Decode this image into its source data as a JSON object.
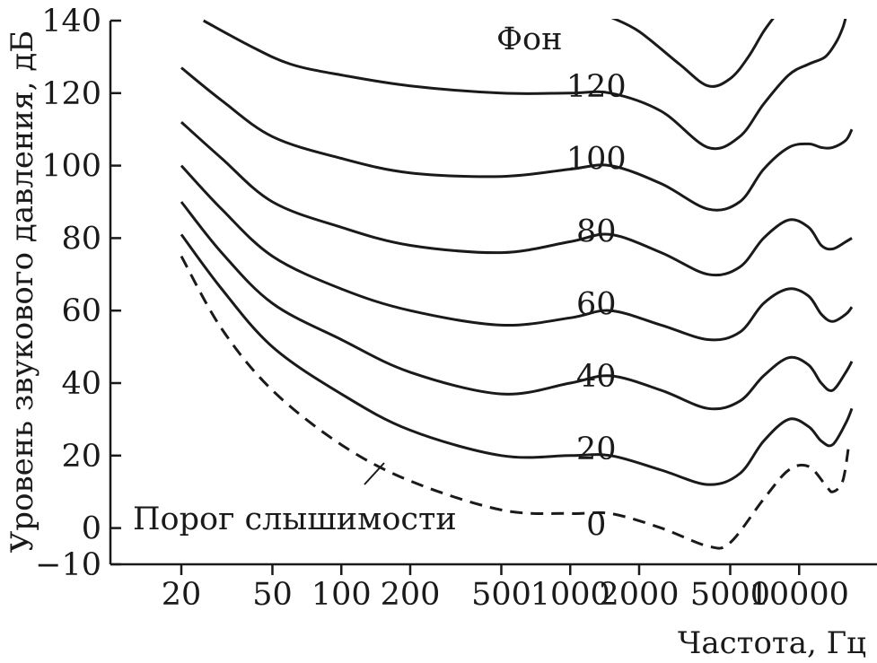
{
  "chart_data": {
    "type": "line",
    "title": "",
    "xlabel": "Частота, Гц",
    "ylabel": "Уровень звукового давления, дБ",
    "x_scale": "log",
    "xlim": [
      10,
      20000
    ],
    "ylim": [
      -10,
      140
    ],
    "x_ticks": [
      {
        "value": 20,
        "label": "20"
      },
      {
        "value": 50,
        "label": "50"
      },
      {
        "value": 100,
        "label": "100"
      },
      {
        "value": 200,
        "label": "200"
      },
      {
        "value": 500,
        "label": "500"
      },
      {
        "value": 1000,
        "label": "1000"
      },
      {
        "value": 2000,
        "label": "2000"
      },
      {
        "value": 5000,
        "label": "5000"
      },
      {
        "value": 10000,
        "label": "10000"
      }
    ],
    "y_ticks": [
      {
        "value": 140,
        "label": "140"
      },
      {
        "value": 120,
        "label": "120"
      },
      {
        "value": 100,
        "label": "100"
      },
      {
        "value": 80,
        "label": "80"
      },
      {
        "value": 60,
        "label": "60"
      },
      {
        "value": 40,
        "label": "40"
      },
      {
        "value": 20,
        "label": "20"
      },
      {
        "value": 0,
        "label": "0"
      },
      {
        "value": -10,
        "label": "−10"
      }
    ],
    "units_label": "Фон",
    "threshold_label": "Порог слышимости",
    "series": [
      {
        "name": "0",
        "dashed": true,
        "label_at": [
          1300,
          -3
        ],
        "points": [
          [
            20,
            75
          ],
          [
            30,
            55
          ],
          [
            50,
            38
          ],
          [
            100,
            23
          ],
          [
            200,
            13
          ],
          [
            500,
            5
          ],
          [
            1000,
            4
          ],
          [
            1500,
            4
          ],
          [
            2500,
            0
          ],
          [
            4000,
            -5
          ],
          [
            5000,
            -4
          ],
          [
            7000,
            8
          ],
          [
            9000,
            16
          ],
          [
            11000,
            17
          ],
          [
            13000,
            12
          ],
          [
            14000,
            10
          ],
          [
            15500,
            13
          ],
          [
            16500,
            23
          ]
        ]
      },
      {
        "name": "20",
        "label_at": [
          1300,
          18
        ],
        "points": [
          [
            20,
            81
          ],
          [
            30,
            66
          ],
          [
            50,
            50
          ],
          [
            100,
            37
          ],
          [
            200,
            27
          ],
          [
            500,
            20
          ],
          [
            1000,
            20
          ],
          [
            1500,
            20
          ],
          [
            2500,
            16
          ],
          [
            4000,
            12
          ],
          [
            5500,
            15
          ],
          [
            7000,
            24
          ],
          [
            9000,
            30
          ],
          [
            11000,
            28
          ],
          [
            12500,
            24
          ],
          [
            14000,
            23
          ],
          [
            16000,
            29
          ],
          [
            17000,
            33
          ]
        ]
      },
      {
        "name": "40",
        "label_at": [
          1300,
          38
        ],
        "points": [
          [
            20,
            90
          ],
          [
            30,
            76
          ],
          [
            50,
            62
          ],
          [
            100,
            52
          ],
          [
            200,
            43
          ],
          [
            500,
            37
          ],
          [
            1000,
            40
          ],
          [
            1500,
            42
          ],
          [
            2500,
            38
          ],
          [
            4000,
            33
          ],
          [
            5500,
            35
          ],
          [
            7000,
            42
          ],
          [
            9000,
            47
          ],
          [
            11000,
            45
          ],
          [
            12500,
            40
          ],
          [
            14000,
            38
          ],
          [
            16000,
            43
          ],
          [
            17000,
            46
          ]
        ]
      },
      {
        "name": "60",
        "label_at": [
          1300,
          58
        ],
        "points": [
          [
            20,
            100
          ],
          [
            30,
            88
          ],
          [
            50,
            75
          ],
          [
            100,
            66
          ],
          [
            200,
            60
          ],
          [
            500,
            56
          ],
          [
            1000,
            58
          ],
          [
            1500,
            60
          ],
          [
            2500,
            56
          ],
          [
            4000,
            52
          ],
          [
            5500,
            54
          ],
          [
            7000,
            62
          ],
          [
            9000,
            66
          ],
          [
            11000,
            64
          ],
          [
            12500,
            59
          ],
          [
            14000,
            57
          ],
          [
            16000,
            59
          ],
          [
            17000,
            61
          ]
        ]
      },
      {
        "name": "80",
        "label_at": [
          1300,
          78
        ],
        "points": [
          [
            20,
            112
          ],
          [
            30,
            102
          ],
          [
            50,
            90
          ],
          [
            100,
            83
          ],
          [
            200,
            78
          ],
          [
            500,
            76
          ],
          [
            1000,
            79
          ],
          [
            1500,
            81
          ],
          [
            2500,
            76
          ],
          [
            4000,
            70
          ],
          [
            5500,
            72
          ],
          [
            7000,
            80
          ],
          [
            9000,
            85
          ],
          [
            11000,
            83
          ],
          [
            12500,
            78
          ],
          [
            14000,
            77
          ],
          [
            16000,
            79
          ],
          [
            17000,
            80
          ]
        ]
      },
      {
        "name": "100",
        "label_at": [
          1300,
          98
        ],
        "points": [
          [
            20,
            127
          ],
          [
            30,
            118
          ],
          [
            50,
            108
          ],
          [
            100,
            102
          ],
          [
            200,
            98
          ],
          [
            500,
            97
          ],
          [
            1000,
            99
          ],
          [
            1500,
            100
          ],
          [
            2500,
            95
          ],
          [
            4000,
            88
          ],
          [
            5500,
            90
          ],
          [
            7000,
            99
          ],
          [
            9000,
            105
          ],
          [
            11000,
            106
          ],
          [
            12500,
            105
          ],
          [
            14000,
            105
          ],
          [
            16000,
            107
          ],
          [
            17000,
            110
          ]
        ]
      },
      {
        "name": "120",
        "label_at": [
          1300,
          118
        ],
        "points": [
          [
            25,
            140
          ],
          [
            40,
            133
          ],
          [
            60,
            128
          ],
          [
            100,
            125
          ],
          [
            200,
            122
          ],
          [
            500,
            120
          ],
          [
            1000,
            120
          ],
          [
            1500,
            120
          ],
          [
            2500,
            115
          ],
          [
            4000,
            105
          ],
          [
            5500,
            108
          ],
          [
            7000,
            117
          ],
          [
            9000,
            125
          ],
          [
            11000,
            128
          ],
          [
            13000,
            130
          ],
          [
            14500,
            134
          ],
          [
            15500,
            138
          ],
          [
            16000,
            141
          ]
        ]
      },
      {
        "name": "",
        "label_at": null,
        "points": [
          [
            1500,
            141
          ],
          [
            2000,
            137
          ],
          [
            3000,
            128
          ],
          [
            4000,
            122
          ],
          [
            5000,
            124
          ],
          [
            6000,
            130
          ],
          [
            7000,
            137
          ],
          [
            8000,
            142
          ]
        ]
      }
    ]
  }
}
